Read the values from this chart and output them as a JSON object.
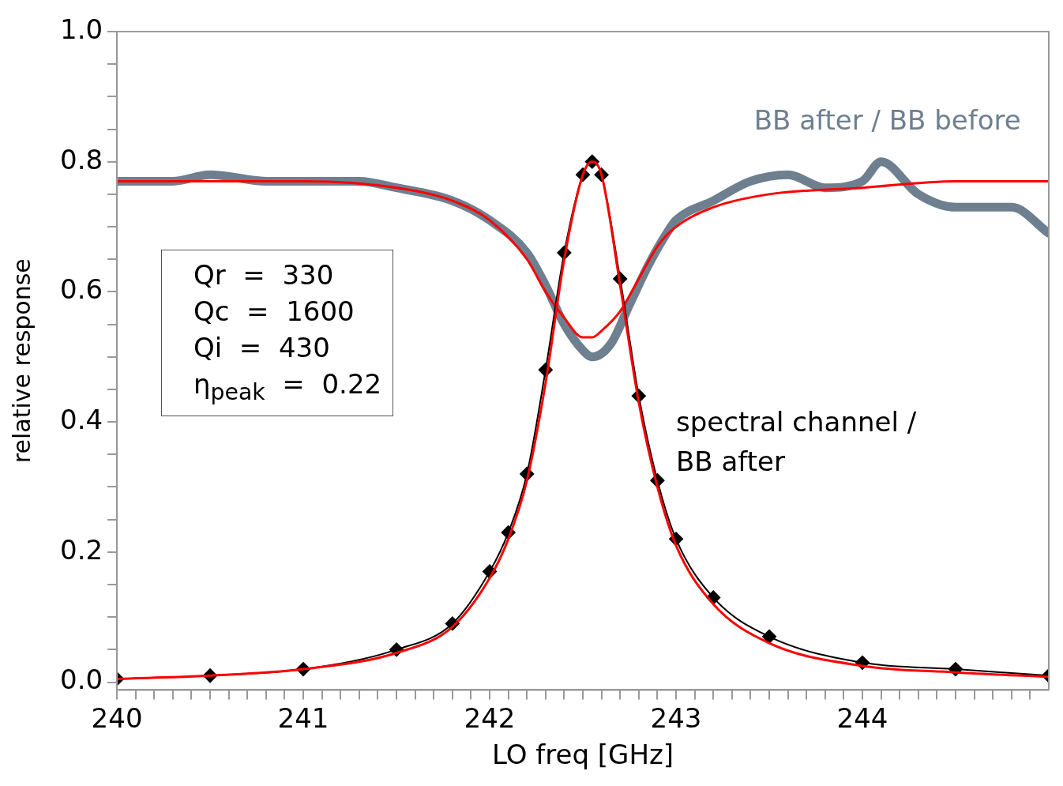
{
  "chart_data": {
    "type": "line",
    "xlabel": "LO freq [GHz]",
    "ylabel": "relative response",
    "xlim": [
      240,
      245
    ],
    "ylim": [
      -0.012,
      1.0
    ],
    "xticks": [
      240,
      {
        "value": 240.1,
        "label": null
      },
      {
        "value": 240.2,
        "label": null
      },
      {
        "value": 240.3,
        "label": null
      },
      {
        "value": 240.4,
        "label": null
      },
      {
        "value": 240.5,
        "label": null
      },
      {
        "value": 240.6,
        "label": null
      },
      {
        "value": 240.7,
        "label": null
      },
      {
        "value": 240.8,
        "label": null
      },
      {
        "value": 240.9,
        "label": null
      },
      241,
      {
        "value": 241.1,
        "label": null
      },
      {
        "value": 241.2,
        "label": null
      },
      {
        "value": 241.3,
        "label": null
      },
      {
        "value": 241.4,
        "label": null
      },
      {
        "value": 241.5,
        "label": null
      },
      {
        "value": 241.6,
        "label": null
      },
      {
        "value": 241.7,
        "label": null
      },
      {
        "value": 241.8,
        "label": null
      },
      {
        "value": 241.9,
        "label": null
      },
      242,
      {
        "value": 242.1,
        "label": null
      },
      {
        "value": 242.2,
        "label": null
      },
      {
        "value": 242.3,
        "label": null
      },
      {
        "value": 242.4,
        "label": null
      },
      {
        "value": 242.5,
        "label": null
      },
      {
        "value": 242.6,
        "label": null
      },
      {
        "value": 242.7,
        "label": null
      },
      {
        "value": 242.8,
        "label": null
      },
      {
        "value": 242.9,
        "label": null
      },
      243,
      {
        "value": 243.1,
        "label": null
      },
      {
        "value": 243.2,
        "label": null
      },
      {
        "value": 243.3,
        "label": null
      },
      {
        "value": 243.4,
        "label": null
      },
      {
        "value": 243.5,
        "label": null
      },
      {
        "value": 243.6,
        "label": null
      },
      {
        "value": 243.7,
        "label": null
      },
      {
        "value": 243.8,
        "label": null
      },
      {
        "value": 243.9,
        "label": null
      },
      244,
      {
        "value": 244.1,
        "label": null
      },
      {
        "value": 244.2,
        "label": null
      },
      {
        "value": 244.3,
        "label": null
      },
      {
        "value": 244.4,
        "label": null
      },
      {
        "value": 244.5,
        "label": null
      },
      {
        "value": 244.6,
        "label": null
      },
      {
        "value": 244.7,
        "label": null
      },
      {
        "value": 244.8,
        "label": null
      },
      {
        "value": 244.9,
        "label": null
      }
    ],
    "yticks": [
      {
        "value": 0,
        "label": "0.0"
      },
      {
        "value": 0.05,
        "label": null
      },
      {
        "value": 0.1,
        "label": null
      },
      {
        "value": 0.15,
        "label": null
      },
      {
        "value": 0.2,
        "label": "0.2"
      },
      {
        "value": 0.25,
        "label": null
      },
      {
        "value": 0.3,
        "label": null
      },
      {
        "value": 0.35,
        "label": null
      },
      {
        "value": 0.4,
        "label": "0.4"
      },
      {
        "value": 0.45,
        "label": null
      },
      {
        "value": 0.5,
        "label": null
      },
      {
        "value": 0.55,
        "label": null
      },
      {
        "value": 0.6,
        "label": "0.6"
      },
      {
        "value": 0.65,
        "label": null
      },
      {
        "value": 0.7,
        "label": null
      },
      {
        "value": 0.75,
        "label": null
      },
      {
        "value": 0.8,
        "label": "0.8"
      },
      {
        "value": 0.85,
        "label": null
      },
      {
        "value": 0.9,
        "label": null
      },
      {
        "value": 0.95,
        "label": null
      },
      {
        "value": 1.0,
        "label": "1.0"
      }
    ],
    "grid": false,
    "legend": false,
    "annotations": [
      "Qr  =  330",
      "Qc  =  1600",
      "Qi  =  430",
      "η$_{peak}$  =  0.22"
    ],
    "series": [
      {
        "name": "BB after / BB before",
        "color": "#6e7f8f",
        "marker": "none",
        "x": [
          240,
          240.3,
          240.5,
          240.8,
          241,
          241.3,
          241.5,
          241.8,
          242,
          242.2,
          242.3,
          242.4,
          242.5,
          242.55,
          242.65,
          242.75,
          242.85,
          242.95,
          243,
          243.2,
          243.4,
          243.6,
          243.8,
          244,
          244.1,
          244.3,
          244.5,
          244.8,
          245
        ],
        "values": [
          0.77,
          0.77,
          0.78,
          0.77,
          0.77,
          0.77,
          0.76,
          0.74,
          0.71,
          0.66,
          0.61,
          0.55,
          0.51,
          0.5,
          0.52,
          0.58,
          0.64,
          0.69,
          0.71,
          0.74,
          0.77,
          0.78,
          0.76,
          0.77,
          0.8,
          0.75,
          0.73,
          0.73,
          0.69
        ]
      },
      {
        "color": "#ff0000",
        "marker": "none",
        "x": [
          240,
          240.5,
          241,
          241.5,
          241.8,
          242,
          242.2,
          242.3,
          242.4,
          242.5,
          242.55,
          242.6,
          242.7,
          242.8,
          242.9,
          243,
          243.2,
          243.5,
          244,
          244.5,
          245
        ],
        "values": [
          0.77,
          0.77,
          0.77,
          0.76,
          0.74,
          0.71,
          0.65,
          0.6,
          0.56,
          0.53,
          0.53,
          0.54,
          0.57,
          0.62,
          0.67,
          0.7,
          0.73,
          0.75,
          0.76,
          0.77,
          0.77
        ]
      },
      {
        "name": "spectral channel / BB after",
        "color": "#000000",
        "marker": "diamond",
        "x": [
          240,
          240.5,
          241,
          241.5,
          241.8,
          242,
          242.1,
          242.2,
          242.3,
          242.4,
          242.5,
          242.55,
          242.6,
          242.7,
          242.8,
          242.9,
          243,
          243.2,
          243.5,
          244,
          244.5,
          245
        ],
        "values": [
          0.005,
          0.01,
          0.02,
          0.05,
          0.09,
          0.17,
          0.23,
          0.32,
          0.48,
          0.66,
          0.78,
          0.8,
          0.78,
          0.62,
          0.44,
          0.31,
          0.22,
          0.13,
          0.07,
          0.03,
          0.02,
          0.01
        ]
      },
      {
        "color": "#ff0000",
        "marker": "none",
        "x": [
          240,
          240.5,
          241,
          241.5,
          241.8,
          242,
          242.1,
          242.2,
          242.3,
          242.4,
          242.5,
          242.55,
          242.6,
          242.7,
          242.8,
          242.9,
          243,
          243.2,
          243.5,
          244,
          244.5,
          245
        ],
        "values": [
          0.005,
          0.01,
          0.02,
          0.045,
          0.085,
          0.16,
          0.22,
          0.31,
          0.46,
          0.65,
          0.78,
          0.8,
          0.78,
          0.61,
          0.43,
          0.3,
          0.21,
          0.12,
          0.06,
          0.025,
          0.015,
          0.008
        ]
      }
    ]
  }
}
